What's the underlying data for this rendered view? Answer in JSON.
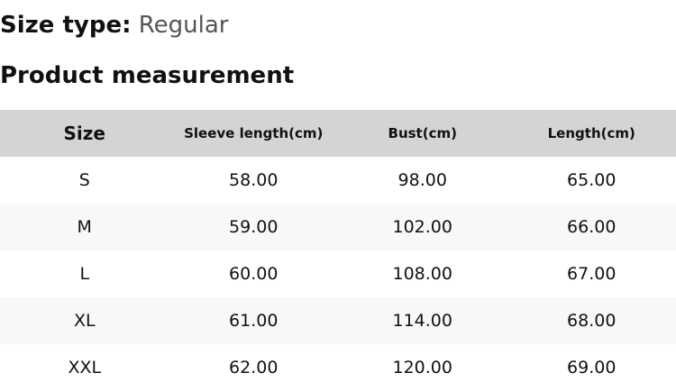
{
  "size_type": {
    "label": "Size type:",
    "value": "Regular"
  },
  "section_title": "Product measurement",
  "table": {
    "headers": [
      "Size",
      "Sleeve length(cm)",
      "Bust(cm)",
      "Length(cm)"
    ],
    "rows": [
      [
        "S",
        "58.00",
        "98.00",
        "65.00"
      ],
      [
        "M",
        "59.00",
        "102.00",
        "66.00"
      ],
      [
        "L",
        "60.00",
        "108.00",
        "67.00"
      ],
      [
        "XL",
        "61.00",
        "114.00",
        "68.00"
      ],
      [
        "XXL",
        "62.00",
        "120.00",
        "69.00"
      ]
    ]
  }
}
